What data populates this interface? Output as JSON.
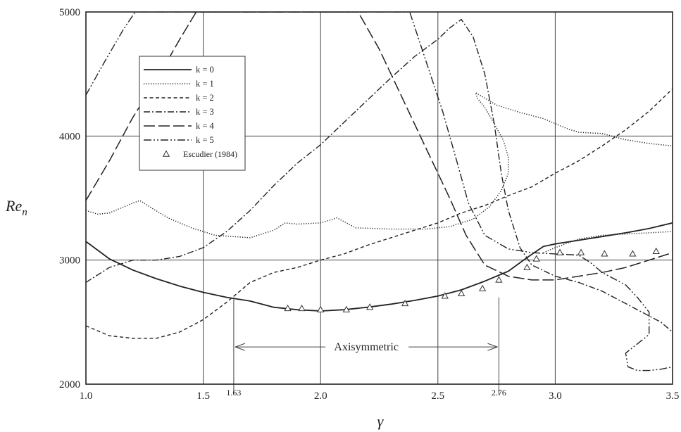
{
  "chart_data": {
    "type": "line",
    "title": "",
    "xlabel": "γ",
    "ylabel": {
      "main": "Re",
      "sub": "n"
    },
    "xlim": [
      1.0,
      3.5
    ],
    "ylim": [
      2000,
      5000
    ],
    "xticks": [
      1.0,
      1.5,
      2.0,
      2.5,
      3.0,
      3.5
    ],
    "xtick_labels": [
      "1.0",
      "1.5",
      "2.0",
      "2.5",
      "3.0",
      "3.5"
    ],
    "yticks": [
      2000,
      3000,
      4000,
      5000
    ],
    "ytick_labels": [
      "2000",
      "3000",
      "4000",
      "5000"
    ],
    "grid": true,
    "legend_position": "top-left",
    "series": [
      {
        "name": "k = 0",
        "k": "0",
        "style": "solid",
        "points": [
          [
            1.0,
            3150
          ],
          [
            1.1,
            3010
          ],
          [
            1.2,
            2920
          ],
          [
            1.3,
            2850
          ],
          [
            1.4,
            2790
          ],
          [
            1.5,
            2740
          ],
          [
            1.6,
            2700
          ],
          [
            1.7,
            2670
          ],
          [
            1.8,
            2620
          ],
          [
            1.9,
            2600
          ],
          [
            2.0,
            2590
          ],
          [
            2.1,
            2600
          ],
          [
            2.2,
            2620
          ],
          [
            2.3,
            2645
          ],
          [
            2.4,
            2675
          ],
          [
            2.5,
            2710
          ],
          [
            2.6,
            2760
          ],
          [
            2.7,
            2830
          ],
          [
            2.8,
            2910
          ],
          [
            2.88,
            3020
          ],
          [
            2.95,
            3110
          ],
          [
            3.0,
            3130
          ],
          [
            3.1,
            3160
          ],
          [
            3.2,
            3190
          ],
          [
            3.3,
            3220
          ],
          [
            3.4,
            3255
          ],
          [
            3.5,
            3300
          ]
        ]
      },
      {
        "name": "k = 1",
        "k": "1",
        "style": "dotted",
        "points": [
          [
            1.0,
            3400
          ],
          [
            1.05,
            3370
          ],
          [
            1.1,
            3380
          ],
          [
            1.15,
            3420
          ],
          [
            1.2,
            3460
          ],
          [
            1.23,
            3480
          ],
          [
            1.28,
            3420
          ],
          [
            1.35,
            3340
          ],
          [
            1.45,
            3260
          ],
          [
            1.55,
            3200
          ],
          [
            1.7,
            3180
          ],
          [
            1.8,
            3240
          ],
          [
            1.85,
            3300
          ],
          [
            1.9,
            3290
          ],
          [
            2.0,
            3300
          ],
          [
            2.07,
            3340
          ],
          [
            2.15,
            3260
          ],
          [
            2.3,
            3250
          ],
          [
            2.45,
            3250
          ],
          [
            2.55,
            3270
          ],
          [
            2.65,
            3330
          ],
          [
            2.72,
            3430
          ],
          [
            2.77,
            3560
          ],
          [
            2.8,
            3700
          ],
          [
            2.8,
            3830
          ],
          [
            2.78,
            3960
          ],
          [
            2.74,
            4100
          ],
          [
            2.7,
            4230
          ],
          [
            2.67,
            4300
          ],
          [
            2.66,
            4350
          ],
          [
            2.75,
            4250
          ],
          [
            2.85,
            4190
          ],
          [
            2.95,
            4140
          ],
          [
            3.0,
            4100
          ],
          [
            3.05,
            4060
          ],
          [
            3.1,
            4030
          ],
          [
            3.2,
            4020
          ],
          [
            3.3,
            3970
          ],
          [
            3.4,
            3940
          ],
          [
            3.5,
            3920
          ]
        ],
        "tail_points": [
          [
            2.95,
            3060
          ],
          [
            3.0,
            3100
          ],
          [
            3.1,
            3170
          ],
          [
            3.2,
            3200
          ],
          [
            3.3,
            3210
          ],
          [
            3.4,
            3220
          ],
          [
            3.5,
            3230
          ]
        ]
      },
      {
        "name": "k = 2",
        "k": "2",
        "style": "dashed",
        "points": [
          [
            1.0,
            2470
          ],
          [
            1.1,
            2390
          ],
          [
            1.2,
            2370
          ],
          [
            1.3,
            2370
          ],
          [
            1.4,
            2420
          ],
          [
            1.5,
            2520
          ],
          [
            1.6,
            2660
          ],
          [
            1.7,
            2820
          ],
          [
            1.8,
            2900
          ],
          [
            1.9,
            2940
          ],
          [
            2.0,
            3000
          ],
          [
            2.1,
            3050
          ],
          [
            2.2,
            3120
          ],
          [
            2.3,
            3180
          ],
          [
            2.4,
            3240
          ],
          [
            2.5,
            3300
          ],
          [
            2.6,
            3380
          ],
          [
            2.7,
            3440
          ],
          [
            2.8,
            3520
          ],
          [
            2.9,
            3590
          ],
          [
            3.0,
            3700
          ],
          [
            3.1,
            3800
          ],
          [
            3.2,
            3920
          ],
          [
            3.3,
            4050
          ],
          [
            3.4,
            4200
          ],
          [
            3.5,
            4380
          ]
        ]
      },
      {
        "name": "k = 3",
        "k": "3",
        "style": "dashdot",
        "points": [
          [
            1.0,
            2820
          ],
          [
            1.1,
            2940
          ],
          [
            1.2,
            3000
          ],
          [
            1.3,
            3000
          ],
          [
            1.4,
            3030
          ],
          [
            1.5,
            3100
          ],
          [
            1.6,
            3230
          ],
          [
            1.7,
            3400
          ],
          [
            1.8,
            3600
          ],
          [
            1.9,
            3780
          ],
          [
            2.0,
            3930
          ],
          [
            2.1,
            4110
          ],
          [
            2.2,
            4290
          ],
          [
            2.3,
            4470
          ],
          [
            2.4,
            4640
          ],
          [
            2.5,
            4780
          ],
          [
            2.55,
            4870
          ],
          [
            2.6,
            4940
          ],
          [
            2.65,
            4800
          ],
          [
            2.7,
            4500
          ],
          [
            2.74,
            4100
          ],
          [
            2.77,
            3700
          ],
          [
            2.8,
            3400
          ],
          [
            2.85,
            3100
          ],
          [
            2.9,
            2960
          ],
          [
            3.0,
            2870
          ],
          [
            3.1,
            2820
          ],
          [
            3.2,
            2750
          ],
          [
            3.3,
            2650
          ],
          [
            3.4,
            2550
          ],
          [
            3.45,
            2500
          ],
          [
            3.5,
            2420
          ]
        ]
      },
      {
        "name": "k = 4",
        "k": "4",
        "style": "longdash",
        "points": [
          [
            1.0,
            3480
          ],
          [
            1.1,
            3800
          ],
          [
            1.2,
            4150
          ],
          [
            1.3,
            4450
          ],
          [
            1.4,
            4780
          ],
          [
            1.47,
            5000
          ],
          [
            2.16,
            5000
          ],
          [
            2.25,
            4700
          ],
          [
            2.35,
            4300
          ],
          [
            2.45,
            3900
          ],
          [
            2.55,
            3500
          ],
          [
            2.62,
            3200
          ],
          [
            2.7,
            2960
          ],
          [
            2.8,
            2870
          ],
          [
            2.9,
            2840
          ],
          [
            3.0,
            2840
          ],
          [
            3.1,
            2870
          ],
          [
            3.2,
            2900
          ],
          [
            3.3,
            2940
          ],
          [
            3.4,
            3000
          ],
          [
            3.5,
            3060
          ]
        ]
      },
      {
        "name": "k = 5",
        "k": "5",
        "style": "dashdotdot",
        "points": [
          [
            1.0,
            4330
          ],
          [
            1.08,
            4600
          ],
          [
            1.16,
            4860
          ],
          [
            1.21,
            5000
          ],
          [
            2.38,
            5000
          ],
          [
            2.45,
            4600
          ],
          [
            2.52,
            4200
          ],
          [
            2.58,
            3800
          ],
          [
            2.63,
            3460
          ],
          [
            2.7,
            3200
          ],
          [
            2.8,
            3090
          ],
          [
            2.9,
            3060
          ],
          [
            3.0,
            3050
          ],
          [
            3.1,
            3040
          ],
          [
            3.15,
            2980
          ],
          [
            3.2,
            2900
          ],
          [
            3.3,
            2800
          ],
          [
            3.35,
            2700
          ],
          [
            3.4,
            2580
          ],
          [
            3.4,
            2400
          ],
          [
            3.3,
            2250
          ],
          [
            3.31,
            2140
          ],
          [
            3.35,
            2110
          ],
          [
            3.4,
            2110
          ],
          [
            3.45,
            2120
          ],
          [
            3.5,
            2140
          ]
        ]
      }
    ],
    "markers": {
      "name": "Escudier (1984)",
      "symbol": "triangle",
      "points": [
        [
          1.86,
          2610
        ],
        [
          1.92,
          2610
        ],
        [
          2.0,
          2600
        ],
        [
          2.11,
          2600
        ],
        [
          2.21,
          2620
        ],
        [
          2.36,
          2650
        ],
        [
          2.53,
          2710
        ],
        [
          2.6,
          2730
        ],
        [
          2.69,
          2770
        ],
        [
          2.76,
          2840
        ],
        [
          2.88,
          2940
        ],
        [
          2.92,
          3010
        ],
        [
          3.02,
          3060
        ],
        [
          3.11,
          3060
        ],
        [
          3.21,
          3050
        ],
        [
          3.33,
          3050
        ],
        [
          3.43,
          3070
        ]
      ]
    },
    "annotations": {
      "range_label": "Axisymmetric",
      "range": [
        1.63,
        2.76
      ],
      "range_y": 2300,
      "x_markers": [
        {
          "label": "1.63",
          "x": 1.63
        },
        {
          "label": "2.76",
          "x": 2.76
        }
      ]
    }
  }
}
